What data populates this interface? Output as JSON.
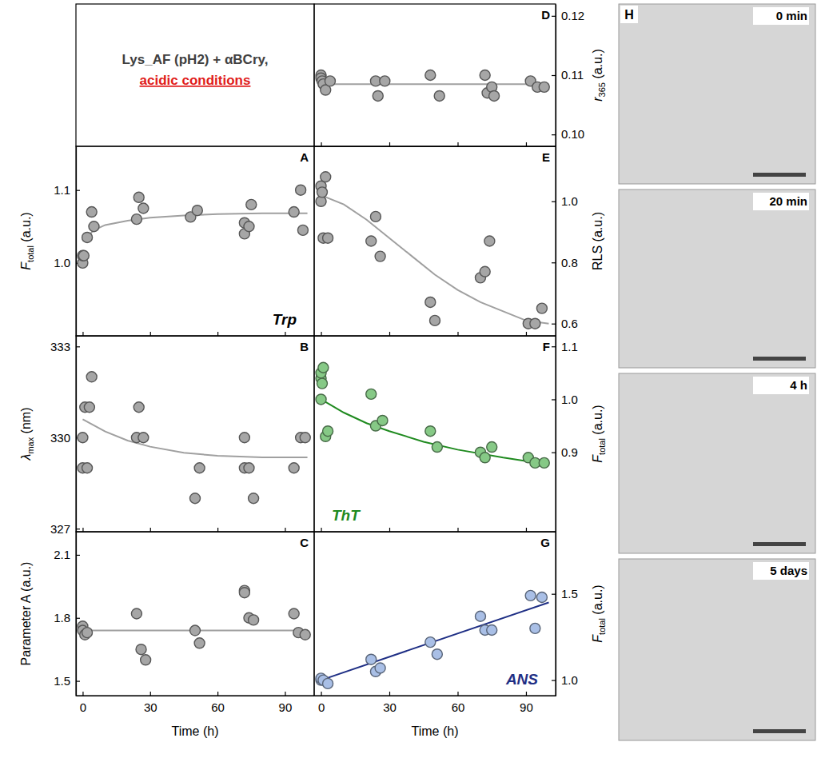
{
  "chart_data": [
    {
      "type": "scatter",
      "title": "A",
      "ylabel": {
        "main": "F",
        "sub": "total",
        "rest": " (a.u.)"
      },
      "xlim": [
        -3,
        103
      ],
      "xticks": [
        0,
        30,
        60,
        90
      ],
      "ylim": [
        0.9,
        1.16
      ],
      "yticks": [
        {
          "value": 1.0,
          "label": "1.0"
        },
        1.1
      ],
      "tick_labels": "y",
      "annotation": {
        "text": "Trp",
        "color": "#000000"
      },
      "series": [
        {
          "type": "scatter",
          "marker": "circle",
          "color": "#a6a6a6",
          "x": [
            0,
            0,
            0.5,
            2,
            4,
            5,
            24,
            25,
            27,
            48,
            51,
            72,
            72,
            74,
            75,
            94,
            97,
            98
          ],
          "values": [
            1.0,
            1.01,
            1.01,
            1.035,
            1.07,
            1.05,
            1.06,
            1.09,
            1.075,
            1.063,
            1.072,
            1.055,
            1.04,
            1.05,
            1.08,
            1.07,
            1.1,
            1.045
          ]
        },
        {
          "type": "line",
          "color": "#a0a0a0",
          "x": [
            0,
            5,
            10,
            20,
            30,
            45,
            60,
            80,
            100
          ],
          "values": [
            1.03,
            1.045,
            1.052,
            1.058,
            1.062,
            1.065,
            1.067,
            1.068,
            1.068
          ]
        }
      ]
    },
    {
      "type": "scatter",
      "title": "B",
      "ylabel": {
        "main": "λ",
        "sub": "max",
        "rest": " (nm)"
      },
      "xlim": [
        -3,
        103
      ],
      "xticks": [
        0,
        30,
        60,
        90
      ],
      "ylim": [
        326.9,
        333.35
      ],
      "yticks": [
        327,
        330,
        333
      ],
      "tick_labels": "y",
      "series": [
        {
          "type": "scatter",
          "marker": "circle",
          "color": "#a6a6a6",
          "x": [
            0,
            0,
            1,
            2,
            3,
            4,
            24,
            25,
            27,
            50,
            52,
            72,
            72,
            74,
            76,
            94,
            97,
            99
          ],
          "values": [
            330,
            329,
            331,
            329,
            331,
            332,
            330,
            331,
            330,
            328,
            329,
            330,
            329,
            329,
            328,
            329,
            330,
            330
          ]
        },
        {
          "type": "line",
          "color": "#a0a0a0",
          "x": [
            0,
            10,
            20,
            30,
            45,
            60,
            80,
            100
          ],
          "values": [
            330.6,
            330.2,
            329.9,
            329.7,
            329.5,
            329.4,
            329.35,
            329.35
          ]
        }
      ]
    },
    {
      "type": "scatter",
      "title": "C",
      "ylabel": "Parameter A (a.u.)",
      "xlabel": "Time (h)",
      "xlim": [
        -3,
        103
      ],
      "xticks": [
        0,
        30,
        60,
        90
      ],
      "ylim": [
        1.43,
        2.21
      ],
      "yticks": [
        1.5,
        1.8,
        2.1
      ],
      "series": [
        {
          "type": "scatter",
          "marker": "circle",
          "color": "#a6a6a6",
          "x": [
            0,
            0,
            1,
            2,
            24,
            26,
            28,
            50,
            52,
            72,
            72,
            74,
            76,
            94,
            96,
            99
          ],
          "values": [
            1.76,
            1.74,
            1.72,
            1.73,
            1.82,
            1.65,
            1.6,
            1.74,
            1.68,
            1.93,
            1.92,
            1.8,
            1.79,
            1.82,
            1.73,
            1.72
          ]
        },
        {
          "type": "line",
          "color": "#a0a0a0",
          "x": [
            0,
            100
          ],
          "values": [
            1.74,
            1.74
          ]
        }
      ]
    },
    {
      "type": "scatter",
      "title": "D",
      "ylabel": {
        "main": "r",
        "sub": "365",
        "rest": " (a.u.)"
      },
      "xlim": [
        -3,
        103
      ],
      "xticks": [
        0,
        30,
        60,
        90
      ],
      "ylim": [
        0.098,
        0.122
      ],
      "yticks": [
        {
          "value": 0.1,
          "label": "0.10"
        },
        {
          "value": 0.11,
          "label": "0.11"
        },
        {
          "value": 0.12,
          "label": "0.12"
        }
      ],
      "tick_labels": "y",
      "series": [
        {
          "type": "scatter",
          "marker": "circle",
          "color": "#a6a6a6",
          "x": [
            0,
            0,
            0.5,
            1,
            2,
            4,
            24,
            25,
            28,
            48,
            52,
            72,
            73,
            75,
            76,
            92,
            95,
            98
          ],
          "values": [
            0.11,
            0.1095,
            0.109,
            0.1085,
            0.1075,
            0.109,
            0.109,
            0.1065,
            0.109,
            0.11,
            0.1065,
            0.11,
            0.107,
            0.108,
            0.1065,
            0.109,
            0.108,
            0.108
          ]
        },
        {
          "type": "line",
          "color": "#a0a0a0",
          "x": [
            0,
            100
          ],
          "values": [
            0.1085,
            0.1085
          ]
        }
      ]
    },
    {
      "type": "scatter",
      "title": "E",
      "ylabel": "RLS (a.u.)",
      "xlim": [
        -3,
        103
      ],
      "xticks": [
        0,
        30,
        60,
        90
      ],
      "ylim": [
        0.56,
        1.18
      ],
      "yticks": [
        0.6,
        0.8,
        {
          "value": 1.0,
          "label": "1.0"
        }
      ],
      "tick_labels": "y",
      "series": [
        {
          "type": "scatter",
          "marker": "circle",
          "color": "#a6a6a6",
          "x": [
            0,
            0,
            0.5,
            1,
            2,
            3,
            22,
            24,
            26,
            48,
            50,
            70,
            72,
            74,
            91,
            94,
            97
          ],
          "values": [
            1.05,
            1.0,
            1.03,
            0.88,
            1.08,
            0.88,
            0.87,
            0.95,
            0.82,
            0.67,
            0.61,
            0.75,
            0.77,
            0.87,
            0.6,
            0.6,
            0.65
          ]
        },
        {
          "type": "line",
          "color": "#a0a0a0",
          "x": [
            0,
            10,
            20,
            30,
            40,
            50,
            60,
            70,
            80,
            90,
            100
          ],
          "values": [
            1.02,
            0.99,
            0.94,
            0.88,
            0.82,
            0.76,
            0.71,
            0.67,
            0.64,
            0.61,
            0.6
          ]
        }
      ]
    },
    {
      "type": "scatter",
      "title": "F",
      "ylabel": {
        "main": "F",
        "sub": "total",
        "rest": " (a.u.)"
      },
      "xlim": [
        -3,
        103
      ],
      "xticks": [
        0,
        30,
        60,
        90
      ],
      "ylim": [
        0.75,
        1.12
      ],
      "yticks": [
        0.9,
        {
          "value": 1.0,
          "label": "1.0"
        },
        1.1
      ],
      "tick_labels": "y",
      "annotation": {
        "text": "ThT",
        "color": "#1f8a1f"
      },
      "series": [
        {
          "type": "scatter",
          "marker": "circle",
          "color": "#86c986",
          "x": [
            0,
            0,
            0,
            0.5,
            1,
            2,
            3,
            22,
            24,
            27,
            48,
            51,
            70,
            72,
            75,
            91,
            94,
            98
          ],
          "values": [
            1.0,
            1.04,
            1.05,
            1.03,
            1.06,
            0.93,
            0.94,
            1.01,
            0.95,
            0.96,
            0.94,
            0.91,
            0.9,
            0.89,
            0.91,
            0.89,
            0.88,
            0.88
          ]
        },
        {
          "type": "line",
          "color": "#1f8a1f",
          "x": [
            0,
            10,
            20,
            30,
            45,
            60,
            80,
            100
          ],
          "values": [
            1.0,
            0.975,
            0.955,
            0.94,
            0.92,
            0.905,
            0.89,
            0.877
          ]
        }
      ]
    },
    {
      "type": "scatter",
      "title": "G",
      "ylabel": {
        "main": "F",
        "sub": "total",
        "rest": " (a.u.)"
      },
      "xlabel": "Time (h)",
      "xlim": [
        -3,
        103
      ],
      "xticks": [
        0,
        30,
        60,
        90
      ],
      "ylim": [
        0.91,
        1.86
      ],
      "yticks": [
        {
          "value": 1.0,
          "label": "1.0"
        },
        1.5
      ],
      "annotation": {
        "text": "ANS",
        "color": "#1f2f85"
      },
      "series": [
        {
          "type": "scatter",
          "marker": "circle",
          "color": "#a9bfe6",
          "x": [
            0,
            0,
            1,
            3,
            22,
            24,
            26,
            48,
            51,
            70,
            72,
            75,
            92,
            94,
            97
          ],
          "values": [
            1.0,
            1.01,
            1.0,
            0.98,
            1.12,
            1.05,
            1.07,
            1.22,
            1.15,
            1.37,
            1.29,
            1.29,
            1.49,
            1.3,
            1.48
          ]
        },
        {
          "type": "line",
          "color": "#1f2f85",
          "x": [
            0,
            100
          ],
          "values": [
            1.0,
            1.45
          ]
        }
      ]
    }
  ],
  "figure": {
    "note": {
      "lines": [
        "Lys_AF (pH2) + αBCry,",
        "acidic conditions"
      ],
      "colors": [
        "#404040",
        "#e01b1b"
      ]
    },
    "images": {
      "label": "H",
      "frames": [
        "0 min",
        "20 min",
        "4 h",
        "5 days"
      ]
    }
  }
}
